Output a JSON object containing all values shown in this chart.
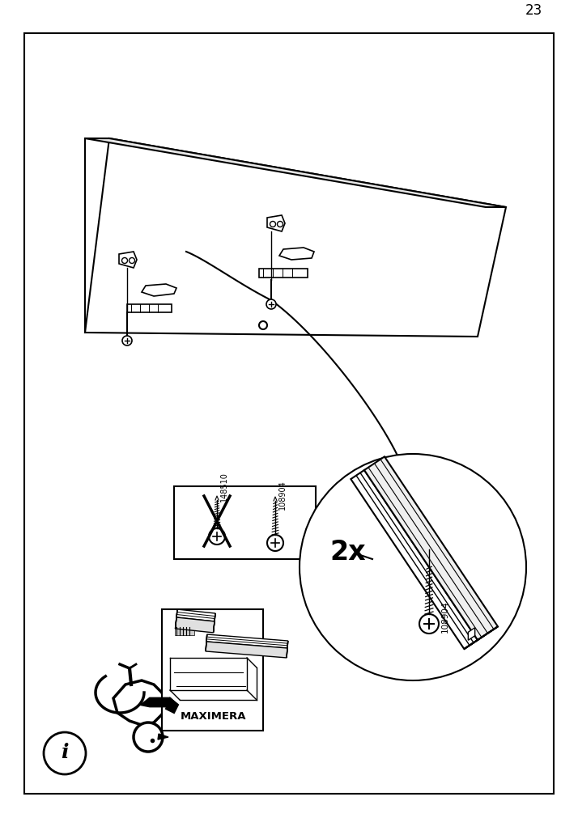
{
  "page_number": "23",
  "bg": "#ffffff",
  "lc": "#000000",
  "maximera_label": "MAXIMERA",
  "screw_label_1": "148510",
  "screw_label_2": "108904",
  "quantity_label": "2x"
}
